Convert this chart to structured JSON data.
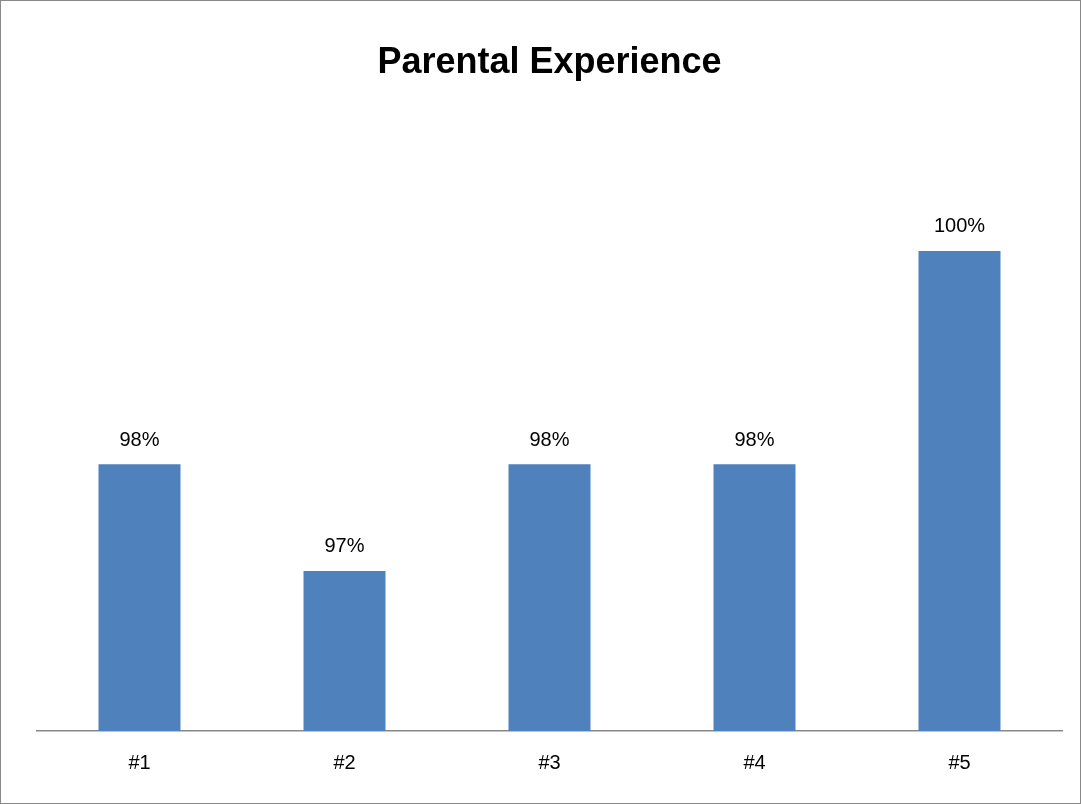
{
  "chart_data": {
    "type": "bar",
    "title": "Parental Experience",
    "categories": [
      "#1",
      "#2",
      "#3",
      "#4",
      "#5"
    ],
    "values": [
      98,
      97,
      98,
      98,
      100
    ],
    "value_labels": [
      "98%",
      "97%",
      "98%",
      "98%",
      "100%"
    ],
    "color": "#4f81bd",
    "tick_labels": "x",
    "grid": false,
    "legend": false
  }
}
